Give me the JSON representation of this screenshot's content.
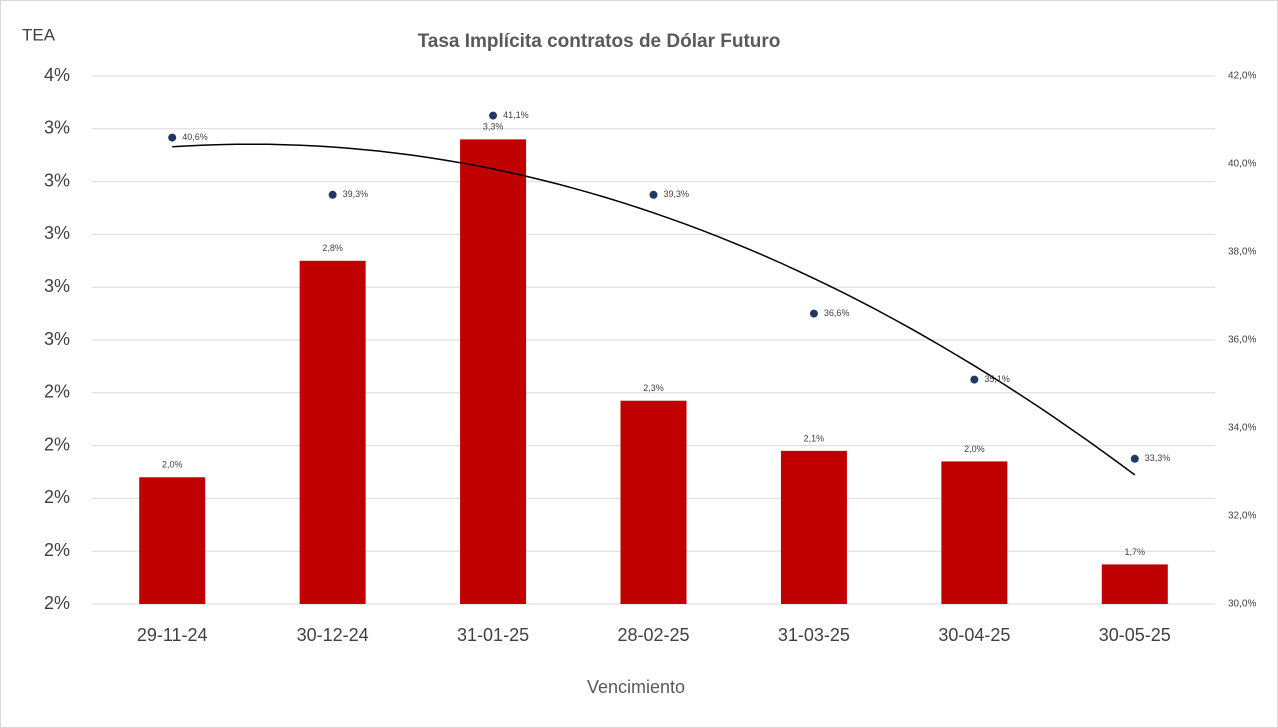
{
  "chart_data": {
    "type": "bar",
    "title": "Tasa Implícita contratos de Dólar Futuro",
    "y_label": "TEA",
    "x_label": "Vencimiento",
    "categories": [
      "29-11-24",
      "30-12-24",
      "31-01-25",
      "28-02-25",
      "31-03-25",
      "30-04-25",
      "30-05-25"
    ],
    "series": [
      {
        "type": "bar",
        "color": "#c00000",
        "axis": "y",
        "values": [
          1.98,
          2.8,
          3.26,
          2.27,
          2.08,
          2.04,
          1.65
        ],
        "value_labels": [
          "2,0%",
          "2,8%",
          "3,3%",
          "2,3%",
          "2,1%",
          "2,0%",
          "1,7%"
        ]
      },
      {
        "type": "scatter",
        "color": "#1f3864",
        "axis": "y2",
        "values": [
          40.6,
          39.3,
          41.1,
          39.3,
          36.6,
          35.1,
          33.3
        ],
        "value_labels": [
          "40,6%",
          "39,3%",
          "41,1%",
          "39,3%",
          "36,6%",
          "35,1%",
          "33,3%"
        ],
        "trendline": {
          "type": "polynomial",
          "order": 2,
          "color": "#000000"
        }
      }
    ],
    "ylim": [
      1.5,
      3.5
    ],
    "yticks": [
      {
        "value": 1.5,
        "label": "2%"
      },
      {
        "value": 1.7,
        "label": "2%"
      },
      {
        "value": 1.9,
        "label": "2%"
      },
      {
        "value": 2.1,
        "label": "2%"
      },
      {
        "value": 2.3,
        "label": "2%"
      },
      {
        "value": 2.5,
        "label": "3%"
      },
      {
        "value": 2.7,
        "label": "3%"
      },
      {
        "value": 2.9,
        "label": "3%"
      },
      {
        "value": 3.1,
        "label": "3%"
      },
      {
        "value": 3.3,
        "label": "3%"
      },
      {
        "value": 3.5,
        "label": "4%"
      }
    ],
    "y2lim": [
      30,
      42
    ],
    "y2ticks": [
      {
        "value": 30,
        "label": "30,0%"
      },
      {
        "value": 32,
        "label": "32,0%"
      },
      {
        "value": 34,
        "label": "34,0%"
      },
      {
        "value": 36,
        "label": "36,0%"
      },
      {
        "value": 38,
        "label": "38,0%"
      },
      {
        "value": 40,
        "label": "40,0%"
      },
      {
        "value": 42,
        "label": "42,0%"
      }
    ],
    "grid": true
  }
}
